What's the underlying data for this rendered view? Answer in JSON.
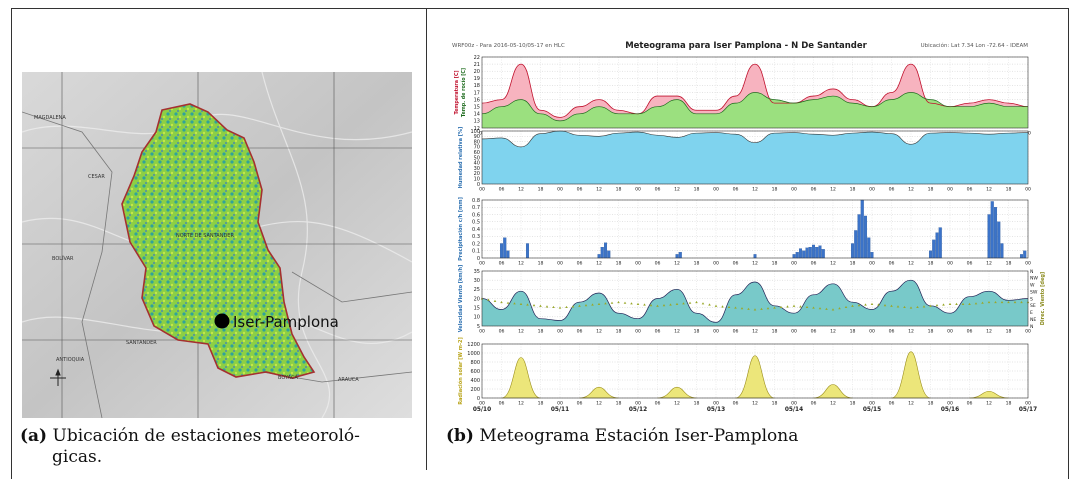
{
  "captions": {
    "a_label": "(a)",
    "a_text_1": "Ubicación de estaciones meteoroló-",
    "a_text_2": "gicas.",
    "b_label": "(b)",
    "b_text": "Meteograma Estación Iser-Pamplona"
  },
  "map": {
    "station_label": "Iser-Pamplona",
    "region_labels": [
      "MAGDALENA",
      "CESAR",
      "BOLÍVAR",
      "NORTE DE SANTANDER",
      "SANTANDER",
      "ANTIOQUIA",
      "BOYACÁ",
      "ARAUCA"
    ],
    "colors": {
      "border": "#a53030",
      "green": "#7ccf3a",
      "teal": "#2aa39a",
      "marker": "#000000"
    }
  },
  "meteogram": {
    "header_left": "WRF00z - Para 2016-05-10/05-17 en HLC",
    "title": "Meteograma para Iser Pamplona - N De Santander",
    "header_right": "Ubicación: Lat 7.34 Lon -72.64 - IDEAM",
    "hour_ticks": [
      "00",
      "06",
      "12",
      "18"
    ],
    "date_labels": [
      "05/10",
      "05/11",
      "05/12",
      "05/13",
      "05/14",
      "05/15",
      "05/16",
      "05/17"
    ],
    "colors": {
      "temp": "#f7b3bf",
      "dew": "#9be07f",
      "hum": "#7fd3ee",
      "precip": "#3b73c9",
      "wind": "#78c9c9",
      "dir": "#9aa82a",
      "rad": "#ece67a"
    }
  },
  "chart_data": [
    {
      "type": "area",
      "name": "temperature",
      "ylabel_1": "Temperatura [C]",
      "ylabel_2": "Temp. de rocío [C]",
      "ylim": [
        12,
        22
      ],
      "yticks": [
        12,
        13,
        14,
        15,
        16,
        17,
        18,
        19,
        20,
        21,
        22
      ],
      "x_hours": [
        0,
        6,
        12,
        18,
        24,
        30,
        36,
        42,
        48,
        54,
        60,
        66,
        72,
        78,
        84,
        90,
        96,
        102,
        108,
        114,
        120,
        126,
        132,
        138,
        144,
        150,
        156,
        162,
        168
      ],
      "series": [
        {
          "values": [
            15.5,
            16,
            21,
            14.5,
            13.5,
            15,
            16,
            14.5,
            14,
            16.5,
            16.5,
            14.5,
            14.5,
            16.5,
            21,
            15.5,
            15.5,
            16.5,
            17.5,
            16,
            15,
            17,
            21,
            15.5,
            15,
            15.5,
            16,
            15.5,
            15
          ]
        },
        {
          "values": [
            14,
            15,
            16,
            14,
            13,
            14,
            15,
            14,
            14,
            15,
            16,
            14,
            14,
            15.5,
            17,
            16,
            15.5,
            16,
            16.5,
            15.5,
            15,
            16,
            17,
            16,
            15,
            15,
            15.5,
            15,
            15
          ]
        }
      ]
    },
    {
      "type": "area",
      "name": "humidity",
      "ylabel": "Humedad relativa [%]",
      "ylim": [
        0,
        100
      ],
      "yticks": [
        0,
        10,
        20,
        30,
        40,
        50,
        60,
        70,
        80,
        90,
        100
      ],
      "x_hours": [
        0,
        6,
        12,
        18,
        24,
        30,
        36,
        42,
        48,
        54,
        60,
        66,
        72,
        78,
        84,
        90,
        96,
        102,
        108,
        114,
        120,
        126,
        132,
        138,
        144,
        150,
        156,
        162,
        168
      ],
      "values": [
        85,
        87,
        70,
        95,
        100,
        92,
        90,
        96,
        98,
        92,
        88,
        96,
        97,
        94,
        78,
        96,
        97,
        94,
        92,
        96,
        98,
        95,
        75,
        96,
        97,
        96,
        94,
        96,
        97
      ]
    },
    {
      "type": "bar",
      "name": "precipitation",
      "ylabel": "Precipitación c/h [mm]",
      "ylim": [
        0,
        0.8
      ],
      "yticks": [
        0,
        0.1,
        0.2,
        0.3,
        0.4,
        0.5,
        0.6,
        0.7,
        0.8
      ],
      "events": [
        {
          "hour": 6,
          "values": [
            0.2,
            0.28,
            0.1
          ]
        },
        {
          "hour": 14,
          "values": [
            0.2
          ]
        },
        {
          "hour": 36,
          "values": [
            0.05,
            0.15,
            0.21,
            0.1
          ]
        },
        {
          "hour": 60,
          "values": [
            0.05,
            0.08
          ]
        },
        {
          "hour": 84,
          "values": [
            0.05
          ]
        },
        {
          "hour": 96,
          "values": [
            0.05,
            0.08,
            0.13,
            0.1,
            0.14,
            0.15,
            0.18,
            0.15,
            0.17,
            0.12
          ]
        },
        {
          "hour": 114,
          "values": [
            0.2,
            0.38,
            0.6,
            0.8,
            0.58,
            0.28,
            0.08
          ]
        },
        {
          "hour": 138,
          "values": [
            0.1,
            0.25,
            0.35,
            0.42
          ]
        },
        {
          "hour": 156,
          "values": [
            0.6,
            0.78,
            0.7,
            0.5,
            0.2
          ]
        },
        {
          "hour": 166,
          "values": [
            0.05,
            0.1
          ]
        }
      ]
    },
    {
      "type": "line",
      "name": "wind",
      "ylabel": "Velocidad Viento [km/h]",
      "ylabel_right": "Direc. Viento [deg]",
      "ylim": [
        5,
        35
      ],
      "yticks": [
        5,
        10,
        15,
        20,
        25,
        30,
        35
      ],
      "dir_ticks": [
        "N",
        "NE",
        "E",
        "SE",
        "S",
        "SW",
        "W",
        "NW",
        "N"
      ],
      "x_hours": [
        0,
        6,
        12,
        18,
        24,
        30,
        36,
        42,
        48,
        54,
        60,
        66,
        72,
        78,
        84,
        90,
        96,
        102,
        108,
        114,
        120,
        126,
        132,
        138,
        144,
        150,
        156,
        162,
        168
      ],
      "values": [
        20,
        14,
        24,
        9,
        8,
        18,
        23,
        12,
        9,
        20,
        25,
        12,
        7,
        22,
        29,
        16,
        12,
        22,
        28,
        18,
        14,
        24,
        30,
        16,
        12,
        21,
        24,
        19,
        20
      ],
      "direction": [
        20,
        18,
        17,
        16,
        15,
        16,
        17,
        18,
        17,
        16,
        17,
        18,
        16,
        15,
        14,
        15,
        16,
        15,
        14,
        16,
        17,
        16,
        15,
        16,
        17,
        17,
        18,
        18,
        18
      ]
    },
    {
      "type": "area",
      "name": "radiation",
      "ylabel": "Radiación solar [W m-2]",
      "ylim": [
        0,
        1200
      ],
      "yticks": [
        0,
        200,
        400,
        600,
        800,
        1000,
        1200
      ],
      "days": [
        {
          "peak_hour": 12,
          "peak": 900
        },
        {
          "peak_hour": 36,
          "peak": 240
        },
        {
          "peak_hour": 60,
          "peak": 240
        },
        {
          "peak_hour": 84,
          "peak": 940
        },
        {
          "peak_hour": 108,
          "peak": 300
        },
        {
          "peak_hour": 132,
          "peak": 1030
        },
        {
          "peak_hour": 156,
          "peak": 150
        }
      ]
    }
  ]
}
